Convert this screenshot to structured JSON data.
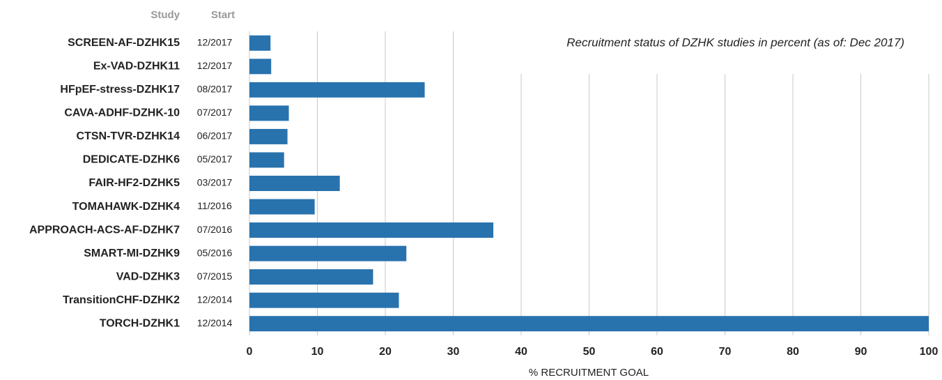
{
  "chart_data": {
    "type": "bar",
    "orientation": "horizontal",
    "title": "Recruitment status of DZHK studies in percent (as of: Dec 2017)",
    "category_header": "Study",
    "date_header": "Start",
    "x_label": "% RECRUITMENT GOAL",
    "categories": [
      "SCREEN-AF-DZHK15",
      "Ex-VAD-DZHK11",
      "HFpEF-stress-DZHK17",
      "CAVA-ADHF-DZHK-10",
      "CTSN-TVR-DZHK14",
      "DEDICATE-DZHK6",
      "FAIR-HF2-DZHK5",
      "TOMAHAWK-DZHK4",
      "APPROACH-ACS-AF-DZHK7",
      "SMART-MI-DZHK9",
      "VAD-DZHK3",
      "TransitionCHF-DZHK2",
      "TORCH-DZHK1"
    ],
    "start_dates": [
      "12/2017",
      "12/2017",
      "08/2017",
      "07/2017",
      "06/2017",
      "05/2017",
      "03/2017",
      "11/2016",
      "07/2016",
      "05/2016",
      "07/2015",
      "12/2014",
      "12/2014"
    ],
    "values": [
      3.1,
      3.2,
      25.8,
      5.8,
      5.6,
      5.1,
      13.3,
      9.6,
      35.9,
      23.1,
      18.2,
      22,
      100
    ],
    "color": "#2872ae",
    "xlim": [
      0,
      100
    ],
    "xticks": [
      0,
      10,
      20,
      30,
      40,
      50,
      60,
      70,
      80,
      90,
      100
    ],
    "grid": true
  }
}
